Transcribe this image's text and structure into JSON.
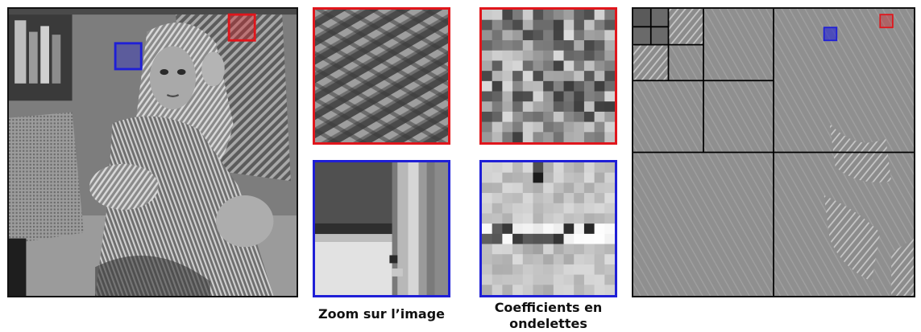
{
  "captions": {
    "zoom": "Zoom sur l’image",
    "coefficients_line1": "Coefficients en",
    "coefficients_line2": "ondelettes"
  },
  "colors": {
    "red_frame": "#e0161c",
    "blue_frame": "#1f1fd6",
    "border": "#111111",
    "background": "#ffffff"
  }
}
